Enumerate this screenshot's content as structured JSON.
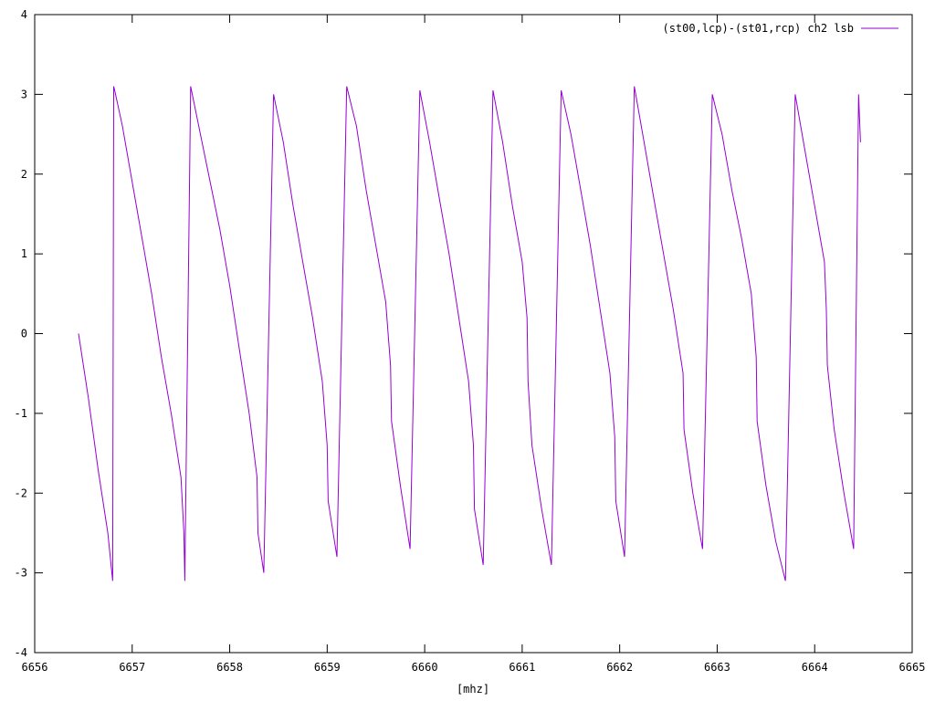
{
  "chart_data": {
    "type": "line",
    "title": "",
    "xlabel": "[mhz]",
    "ylabel": "",
    "xlim": [
      6656,
      6665
    ],
    "ylim": [
      -4,
      4
    ],
    "xticks": [
      "6656",
      "6657",
      "6658",
      "6659",
      "6660",
      "6661",
      "6662",
      "6663",
      "6664",
      "6665"
    ],
    "yticks": [
      "-4",
      "-3",
      "-2",
      "-1",
      "0",
      "1",
      "2",
      "3",
      "4"
    ],
    "grid": false,
    "legend": "top-right",
    "series": [
      {
        "name": "(st00,lcp)-(st01,rcp) ch2 lsb",
        "color": "#9400d3",
        "x": [
          6656.45,
          6656.55,
          6656.65,
          6656.75,
          6656.8,
          6656.81,
          6656.82,
          6656.9,
          6657.0,
          6657.1,
          6657.2,
          6657.3,
          6657.4,
          6657.5,
          6657.53,
          6657.54,
          6657.6,
          6657.7,
          6657.8,
          6657.9,
          6658.0,
          6658.1,
          6658.2,
          6658.28,
          6658.29,
          6658.35,
          6658.45,
          6658.55,
          6658.65,
          6658.75,
          6658.85,
          6658.95,
          6659.0,
          6659.01,
          6659.1,
          6659.2,
          6659.3,
          6659.4,
          6659.5,
          6659.6,
          6659.65,
          6659.66,
          6659.75,
          6659.85,
          6659.95,
          6660.05,
          6660.15,
          6660.25,
          6660.35,
          6660.45,
          6660.5,
          6660.51,
          6660.6,
          6660.7,
          6660.8,
          6660.9,
          6661.0,
          6661.05,
          6661.06,
          6661.1,
          6661.2,
          6661.3,
          6661.4,
          6661.5,
          6661.6,
          6661.7,
          6661.8,
          6661.9,
          6661.95,
          6661.96,
          6662.05,
          6662.15,
          6662.25,
          6662.35,
          6662.45,
          6662.55,
          6662.65,
          6662.66,
          6662.75,
          6662.85,
          6662.95,
          6663.05,
          6663.15,
          6663.25,
          6663.35,
          6663.4,
          6663.41,
          6663.5,
          6663.6,
          6663.7,
          6663.8,
          6663.9,
          6664.0,
          6664.1,
          6664.12,
          6664.13,
          6664.2,
          6664.3,
          6664.4,
          6664.45,
          6664.47
        ],
        "values": [
          0.0,
          -0.8,
          -1.7,
          -2.5,
          -3.1,
          3.1,
          3.05,
          2.6,
          1.9,
          1.2,
          0.5,
          -0.3,
          -1.0,
          -1.8,
          -2.5,
          -3.1,
          3.1,
          2.5,
          1.9,
          1.3,
          0.6,
          -0.2,
          -1.0,
          -1.8,
          -2.5,
          -3.0,
          3.0,
          2.4,
          1.6,
          0.9,
          0.2,
          -0.6,
          -1.4,
          -2.1,
          -2.8,
          3.1,
          2.6,
          1.8,
          1.1,
          0.4,
          -0.4,
          -1.1,
          -1.9,
          -2.7,
          3.05,
          2.4,
          1.7,
          1.0,
          0.2,
          -0.6,
          -1.4,
          -2.2,
          -2.9,
          3.05,
          2.4,
          1.6,
          0.9,
          0.2,
          -0.6,
          -1.4,
          -2.2,
          -2.9,
          3.05,
          2.5,
          1.8,
          1.1,
          0.3,
          -0.5,
          -1.3,
          -2.1,
          -2.8,
          3.1,
          2.4,
          1.7,
          1.0,
          0.3,
          -0.5,
          -1.2,
          -2.0,
          -2.7,
          3.0,
          2.5,
          1.8,
          1.2,
          0.5,
          -0.3,
          -1.1,
          -1.9,
          -2.6,
          -3.1,
          3.0,
          2.3,
          1.6,
          0.9,
          0.3,
          -0.4,
          -1.2,
          -2.0,
          -2.7,
          3.0,
          2.4
        ]
      }
    ]
  }
}
